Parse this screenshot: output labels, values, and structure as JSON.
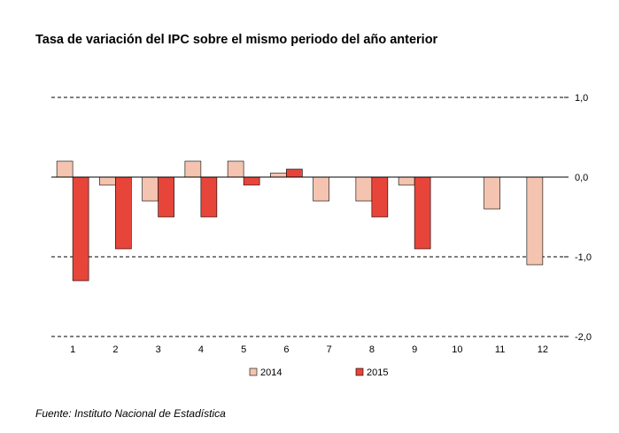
{
  "chart_data": {
    "type": "bar",
    "title": "Tasa de variación del IPC sobre el mismo periodo del año anterior",
    "categories": [
      "1",
      "2",
      "3",
      "4",
      "5",
      "6",
      "7",
      "8",
      "9",
      "10",
      "11",
      "12"
    ],
    "series": [
      {
        "name": "2014",
        "values": [
          0.2,
          -0.1,
          -0.3,
          0.2,
          0.2,
          0.05,
          -0.3,
          -0.3,
          -0.1,
          null,
          -0.4,
          -1.1
        ],
        "fill": "#f4c4b0",
        "stroke": "#000000"
      },
      {
        "name": "2015",
        "values": [
          -1.3,
          -0.9,
          -0.5,
          -0.5,
          -0.1,
          0.1,
          null,
          -0.5,
          -0.9,
          null,
          null,
          null
        ],
        "fill": "#e8453a",
        "stroke": "#000000"
      }
    ],
    "y_ticks": [
      1.0,
      0.0,
      -1.0,
      -2.0
    ],
    "y_tick_labels": [
      "1,0",
      "0,0",
      "-1,0",
      "-2,0"
    ],
    "ylim": [
      -2.0,
      1.0
    ],
    "y_axis_side": "right",
    "gridlines": "dashed",
    "legend_position": "bottom"
  },
  "source": "Fuente: Instituto Nacional de Estadística"
}
